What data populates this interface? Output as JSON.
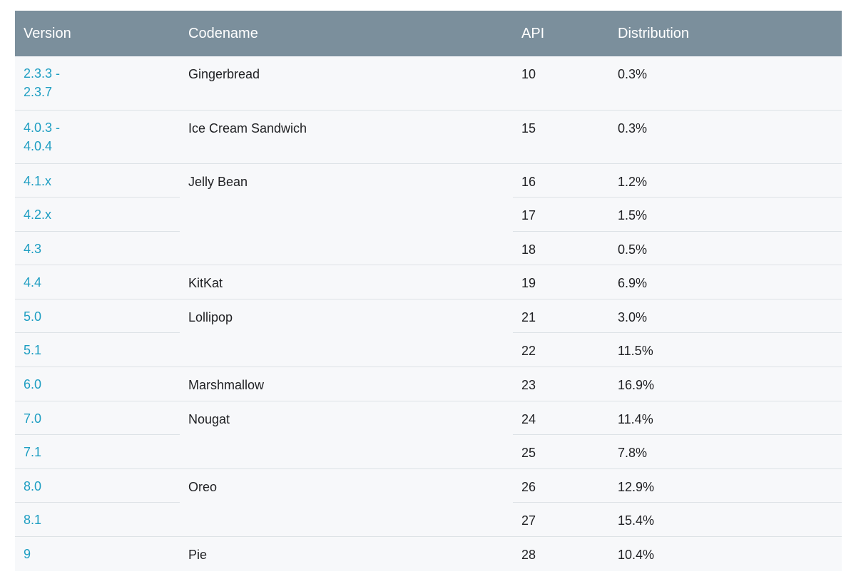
{
  "table": {
    "headers": {
      "version": "Version",
      "codename": "Codename",
      "api": "API",
      "distribution": "Distribution"
    },
    "rows": [
      {
        "version": "2.3.3 -\n2.3.7",
        "codename": "Gingerbread",
        "api": "10",
        "distribution": "0.3%"
      },
      {
        "version": "4.0.3 -\n4.0.4",
        "codename": "Ice Cream Sandwich",
        "api": "15",
        "distribution": "0.3%"
      },
      {
        "version": "4.1.x",
        "codename": "Jelly Bean",
        "api": "16",
        "distribution": "1.2%"
      },
      {
        "version": "4.2.x",
        "codename": "",
        "api": "17",
        "distribution": "1.5%"
      },
      {
        "version": "4.3",
        "codename": "",
        "api": "18",
        "distribution": "0.5%"
      },
      {
        "version": "4.4",
        "codename": "KitKat",
        "api": "19",
        "distribution": "6.9%"
      },
      {
        "version": "5.0",
        "codename": "Lollipop",
        "api": "21",
        "distribution": "3.0%"
      },
      {
        "version": "5.1",
        "codename": "",
        "api": "22",
        "distribution": "11.5%"
      },
      {
        "version": "6.0",
        "codename": "Marshmallow",
        "api": "23",
        "distribution": "16.9%"
      },
      {
        "version": "7.0",
        "codename": "Nougat",
        "api": "24",
        "distribution": "11.4%"
      },
      {
        "version": "7.1",
        "codename": "",
        "api": "25",
        "distribution": "7.8%"
      },
      {
        "version": "8.0",
        "codename": "Oreo",
        "api": "26",
        "distribution": "12.9%"
      },
      {
        "version": "8.1",
        "codename": "",
        "api": "27",
        "distribution": "15.4%"
      },
      {
        "version": "9",
        "codename": "Pie",
        "api": "28",
        "distribution": "10.4%"
      }
    ]
  },
  "colors": {
    "header_bg": "#7b8f9c",
    "header_text": "#ffffff",
    "link": "#1e9ec2",
    "row_bg": "#f7f8fa",
    "border": "#dde2e6"
  }
}
